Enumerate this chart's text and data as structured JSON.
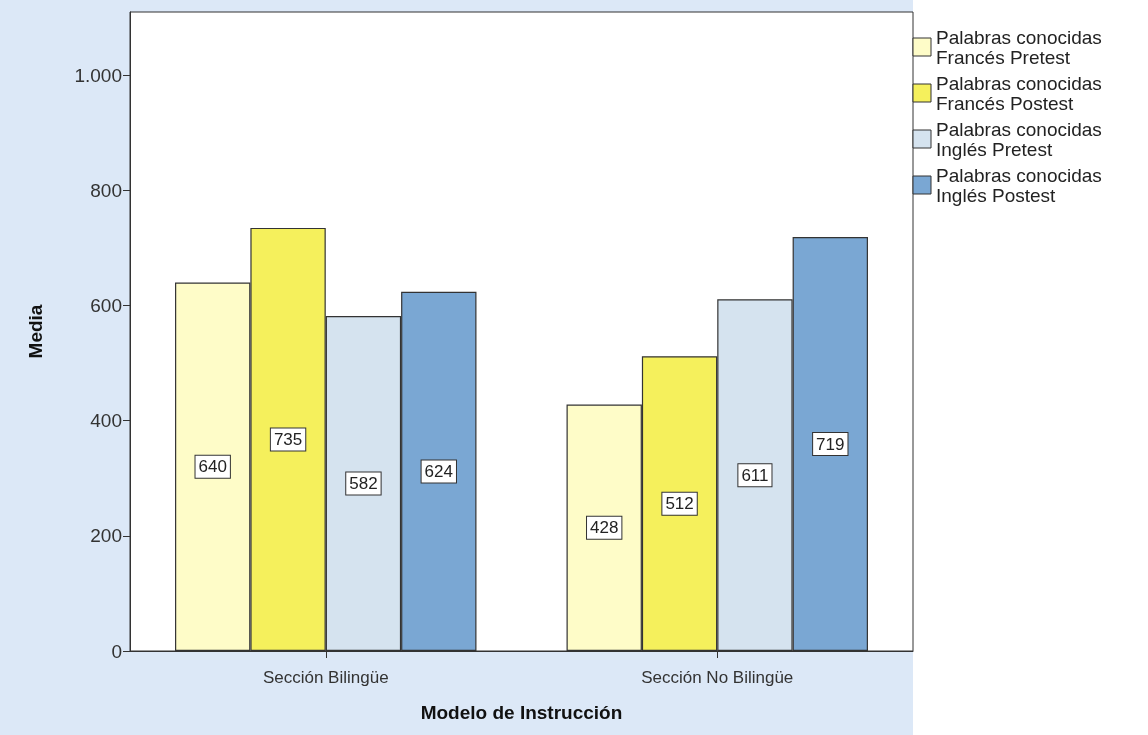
{
  "chart_data": {
    "type": "bar",
    "xlabel": "Modelo de Instrucción",
    "ylabel": "Media",
    "categories": [
      "Sección Bilingüe",
      "Sección No Bilingüe"
    ],
    "series": [
      {
        "name": "Palabras conocidas Francés Pretest",
        "color": "#fefcc8",
        "values": [
          640,
          428
        ]
      },
      {
        "name": "Palabras conocidas Francés Postest",
        "color": "#f5f05c",
        "values": [
          735,
          512
        ]
      },
      {
        "name": "Palabras conocidas Inglés Pretest",
        "color": "#d5e3ef",
        "values": [
          582,
          611
        ]
      },
      {
        "name": "Palabras conocidas Inglés Postest",
        "color": "#7aa7d3",
        "values": [
          624,
          719
        ]
      }
    ],
    "ylim": [
      0,
      1110
    ],
    "yticks": [
      0,
      200,
      400,
      600,
      800,
      {
        "value": 1000,
        "label": "1.000"
      }
    ],
    "data_labels": true,
    "grid": false,
    "legend": "top right"
  }
}
